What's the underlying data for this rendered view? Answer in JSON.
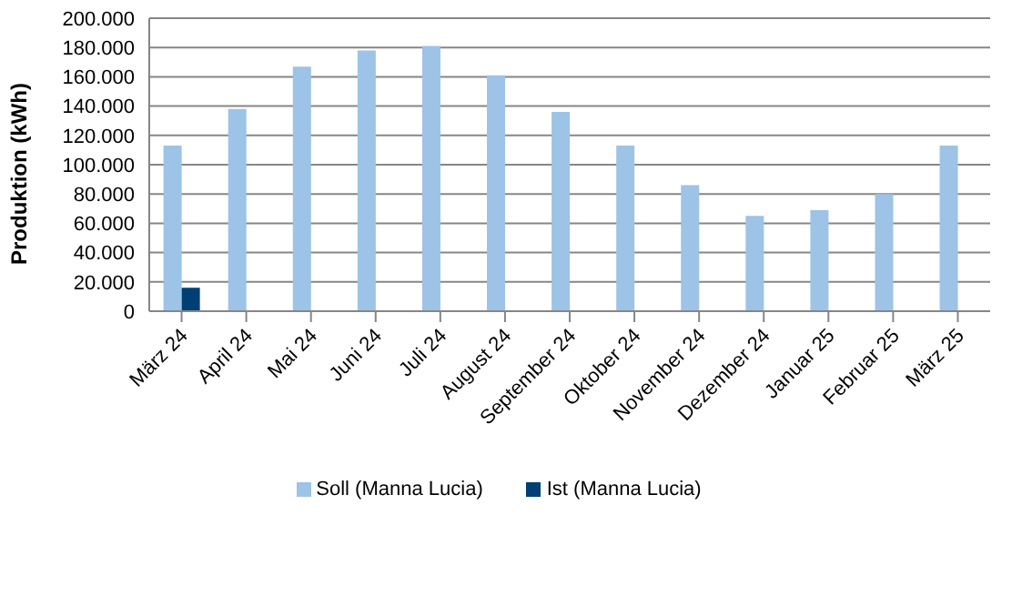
{
  "chart_data": {
    "type": "bar",
    "ylabel": "Produktion (kWh)",
    "categories": [
      "März 24",
      "April 24",
      "Mai 24",
      "Juni 24",
      "Juli 24",
      "August 24",
      "September 24",
      "Oktober 24",
      "November 24",
      "Dezember 24",
      "Januar 25",
      "Februar 25",
      "März 25"
    ],
    "series": [
      {
        "name": "Soll (Manna Lucia)",
        "color": "#9dc3e6",
        "values": [
          113000,
          138000,
          167000,
          178000,
          181000,
          161000,
          136000,
          113000,
          86000,
          65000,
          69000,
          80000,
          113000
        ]
      },
      {
        "name": "Ist (Manna Lucia)",
        "color": "#003f73",
        "values": [
          16000,
          null,
          null,
          null,
          null,
          null,
          null,
          null,
          null,
          null,
          null,
          null,
          null
        ]
      }
    ],
    "ylim": [
      0,
      200000
    ],
    "yticks": [
      {
        "value": 0,
        "label": "0"
      },
      {
        "value": 20000,
        "label": "20.000"
      },
      {
        "value": 40000,
        "label": "40.000"
      },
      {
        "value": 60000,
        "label": "60.000"
      },
      {
        "value": 80000,
        "label": "80.000"
      },
      {
        "value": 100000,
        "label": "100.000"
      },
      {
        "value": 120000,
        "label": "120.000"
      },
      {
        "value": 140000,
        "label": "140.000"
      },
      {
        "value": 160000,
        "label": "160.000"
      },
      {
        "value": 180000,
        "label": "180.000"
      },
      {
        "value": 200000,
        "label": "200.000"
      }
    ],
    "grid": "y",
    "legend": "bottom"
  }
}
